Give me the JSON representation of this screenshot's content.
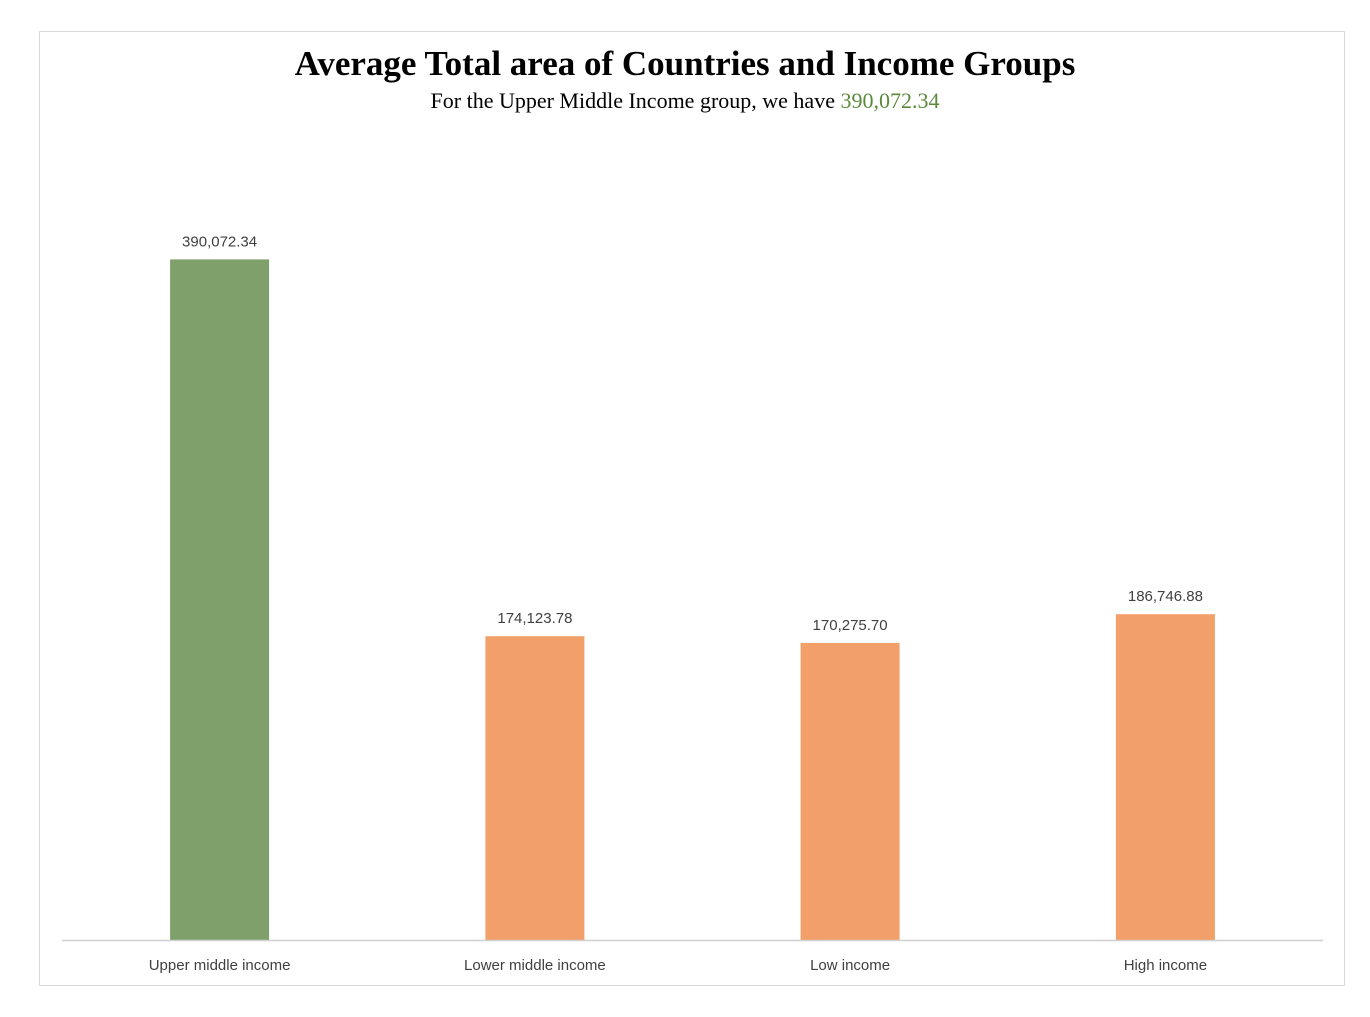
{
  "chart_data": {
    "type": "bar",
    "title": "Average Total area of Countries and Income Groups",
    "subtitle": {
      "prefix": "For the Upper Middle Income group, we have ",
      "highlight": "390,072.34"
    },
    "categories": [
      "Upper middle income",
      "Lower middle income",
      "Low income",
      "High income"
    ],
    "values": [
      390072.34,
      174123.78,
      170275.7,
      186746.88
    ],
    "value_labels": [
      "390,072.34",
      "174,123.78",
      "170,275.70",
      "186,746.88"
    ],
    "bar_colors": [
      "#7fa06b",
      "#f39f6a",
      "#f39f6a",
      "#f39f6a"
    ],
    "highlight_color": "#5b8a3c",
    "axis_color": "#d0d0d0",
    "ylim": [
      0,
      470000
    ],
    "grid": false,
    "legend": "none"
  }
}
